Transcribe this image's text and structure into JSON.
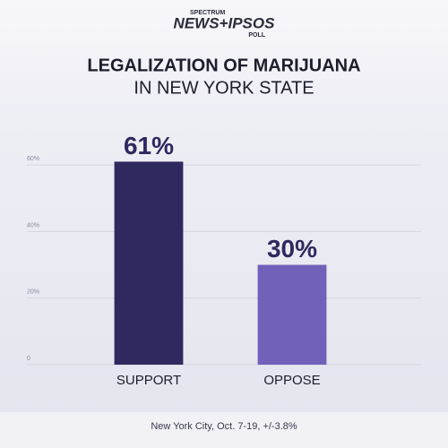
{
  "chart_data": {
    "type": "bar",
    "logo": {
      "top": "SPECTRUM",
      "main": "NEWS+IPSOS",
      "bottom": "POLL"
    },
    "title": "LEGALIZATION OF MARIJUANA",
    "subtitle": "IN NEW YORK STATE",
    "categories": [
      "SUPPORT",
      "OPPOSE"
    ],
    "values": [
      61,
      30
    ],
    "value_labels": [
      "61%",
      "30%"
    ],
    "colors": [
      "#2e2a5f",
      "#7161b9"
    ],
    "ylim": [
      0,
      70
    ],
    "yticks": [
      0,
      {
        "value": 20,
        "label": "20%"
      },
      {
        "value": 40,
        "label": "40%"
      },
      {
        "value": 60,
        "label": "60%"
      }
    ],
    "grid": true,
    "footnote": "New York City, Oct. 7-19, +/-3.8%"
  }
}
